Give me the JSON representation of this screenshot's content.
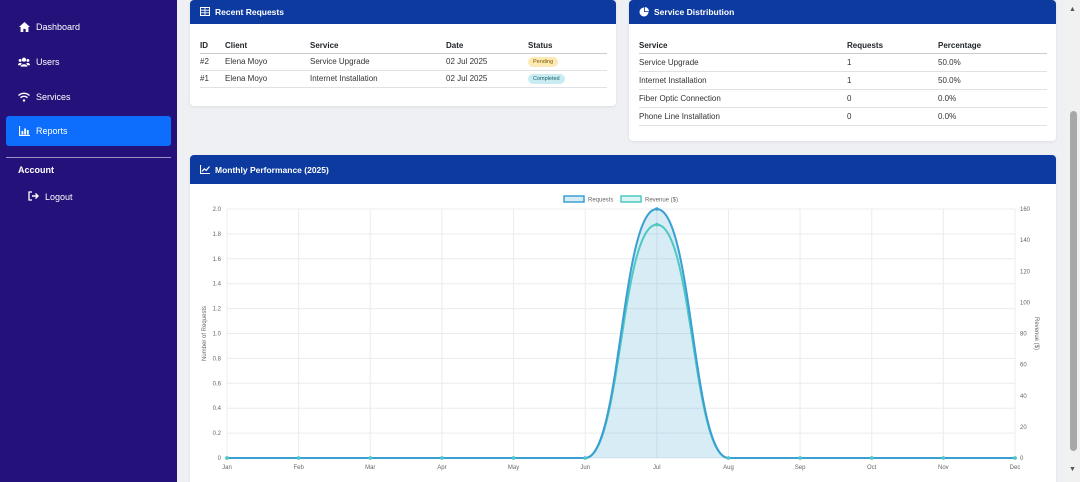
{
  "sidebar": {
    "items": [
      {
        "label": "Dashboard"
      },
      {
        "label": "Users"
      },
      {
        "label": "Services"
      },
      {
        "label": "Reports"
      }
    ],
    "account_heading": "Account",
    "logout_label": "Logout"
  },
  "recent_requests": {
    "title": "Recent Requests",
    "columns": [
      "ID",
      "Client",
      "Service",
      "Date",
      "Status"
    ],
    "rows": [
      {
        "id": "#2",
        "client": "Elena Moyo",
        "service": "Service Upgrade",
        "date": "02 Jul 2025",
        "status": "Pending"
      },
      {
        "id": "#1",
        "client": "Elena Moyo",
        "service": "Internet Installation",
        "date": "02 Jul 2025",
        "status": "Completed"
      }
    ]
  },
  "service_distribution": {
    "title": "Service Distribution",
    "columns": [
      "Service",
      "Requests",
      "Percentage"
    ],
    "rows": [
      {
        "service": "Service Upgrade",
        "requests": "1",
        "percentage": "50.0%"
      },
      {
        "service": "Internet Installation",
        "requests": "1",
        "percentage": "50.0%"
      },
      {
        "service": "Fiber Optic Connection",
        "requests": "0",
        "percentage": "0.0%"
      },
      {
        "service": "Phone Line Installation",
        "requests": "0",
        "percentage": "0.0%"
      }
    ]
  },
  "monthly_performance": {
    "title": "Monthly Performance (2025)"
  },
  "chart_data": {
    "type": "area",
    "categories": [
      "Jan",
      "Feb",
      "Mar",
      "Apr",
      "May",
      "Jun",
      "Jul",
      "Aug",
      "Sep",
      "Oct",
      "Nov",
      "Dec"
    ],
    "series": [
      {
        "name": "Requests",
        "axis": "left",
        "values": [
          0,
          0,
          0,
          0,
          0,
          0,
          2,
          0,
          0,
          0,
          0,
          0
        ],
        "color": "#3a9fd3"
      },
      {
        "name": "Revenue ($)",
        "axis": "right",
        "values": [
          0,
          0,
          0,
          0,
          0,
          0,
          150,
          0,
          0,
          0,
          0,
          0
        ],
        "color": "#4fc9c2"
      }
    ],
    "ylabel": "Number of Requests",
    "y2label": "Revenue ($)",
    "ylim": [
      0,
      2
    ],
    "y_ticks": [
      "0",
      "0.2",
      "0.4",
      "0.6",
      "0.8",
      "1.0",
      "1.2",
      "1.4",
      "1.6",
      "1.8",
      "2.0"
    ],
    "y2lim": [
      0,
      160
    ],
    "y2_ticks": [
      "0",
      "20",
      "40",
      "60",
      "80",
      "100",
      "120",
      "140",
      "160"
    ],
    "grid": true,
    "legend": "top"
  },
  "colors": {
    "sidebar_bg": "#24127a",
    "active_item": "#0d6efd",
    "card_header": "#0d3a9e"
  },
  "icons": {
    "dashboard": "home-icon",
    "users": "users-icon",
    "services": "wifi-icon",
    "reports": "chart-icon",
    "logout": "logout-icon",
    "recent_requests": "table-icon",
    "service_distribution": "pie-icon",
    "monthly_performance": "line-chart-icon"
  }
}
